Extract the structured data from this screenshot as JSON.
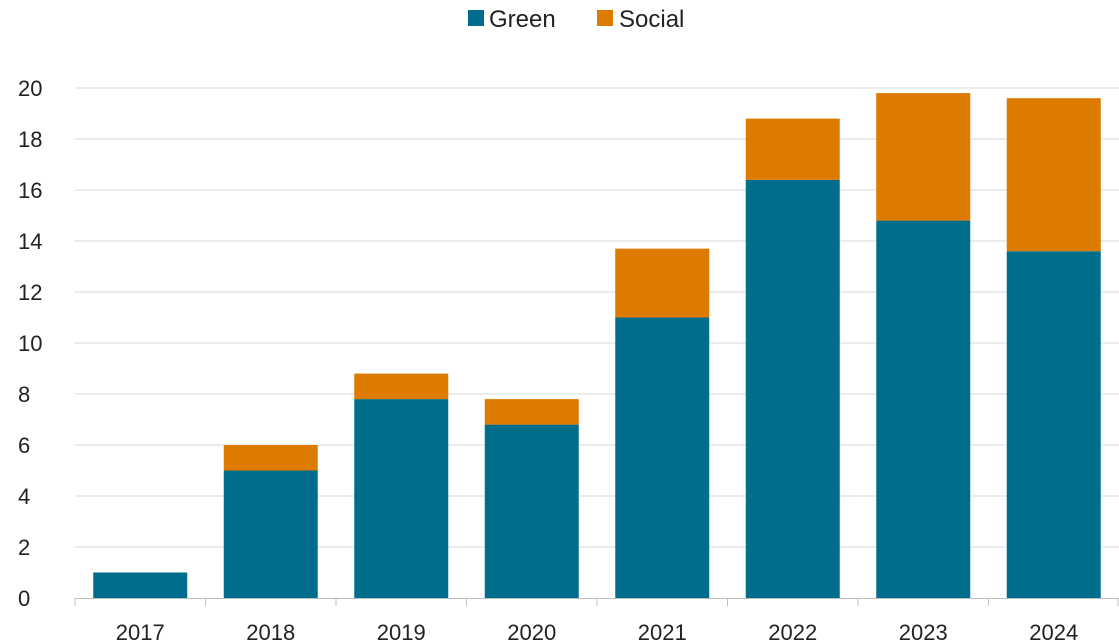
{
  "chart_data": {
    "type": "bar",
    "stacked": true,
    "title": "",
    "xlabel": "",
    "ylabel": "",
    "categories": [
      "2017",
      "2018",
      "2019",
      "2020",
      "2021",
      "2022",
      "2023",
      "2024"
    ],
    "series": [
      {
        "name": "Green",
        "color": "#006e8a",
        "values": [
          1.0,
          5.0,
          7.8,
          6.8,
          11.0,
          16.4,
          14.8,
          13.6
        ]
      },
      {
        "name": "Social",
        "color": "#dd7a00",
        "values": [
          0.0,
          1.0,
          1.0,
          1.0,
          2.7,
          2.4,
          5.0,
          6.0
        ]
      }
    ],
    "ylim": [
      0,
      20
    ],
    "yticks": [
      0,
      2,
      4,
      6,
      8,
      10,
      12,
      14,
      16,
      18,
      20
    ],
    "ytick_labels": [
      "0",
      "2",
      "4",
      "6",
      "8",
      "10",
      "12",
      "14",
      "16",
      "18",
      "20"
    ],
    "grid": true,
    "legend_position": "top-center"
  }
}
